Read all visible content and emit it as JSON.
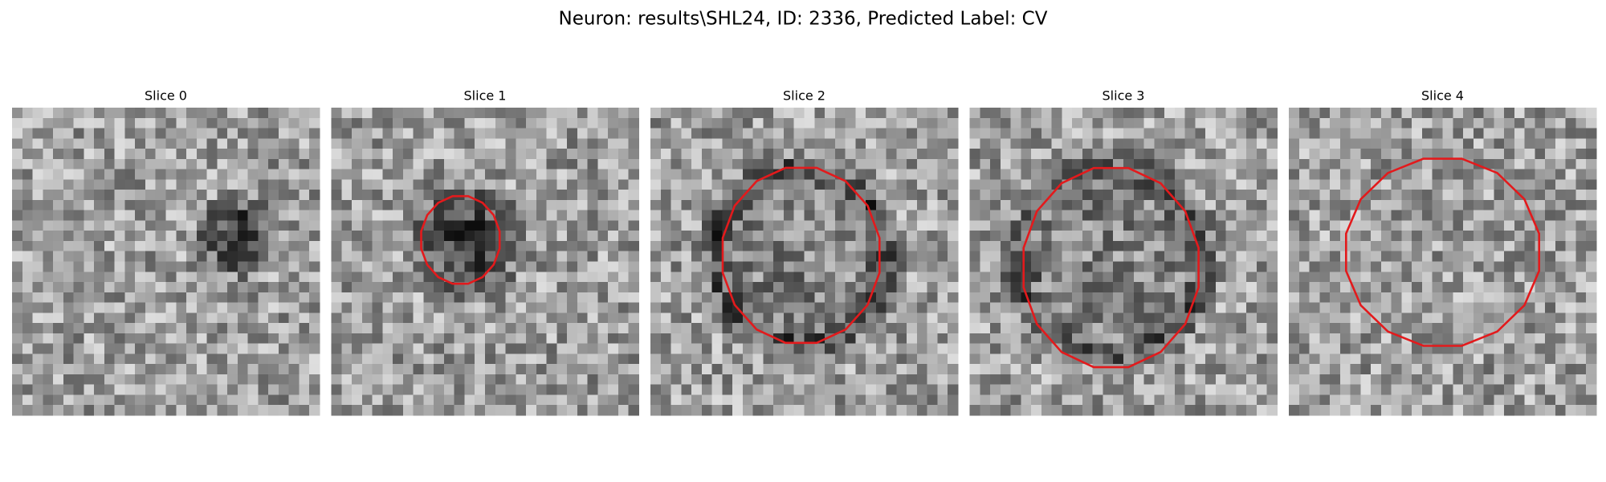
{
  "title": "Neuron: results\\SHL24, ID: 2336, Predicted Label: CV",
  "panels": [
    {
      "title": "Slice 0"
    },
    {
      "title": "Slice 1"
    },
    {
      "title": "Slice 2"
    },
    {
      "title": "Slice 3"
    },
    {
      "title": "Slice 4"
    }
  ]
}
